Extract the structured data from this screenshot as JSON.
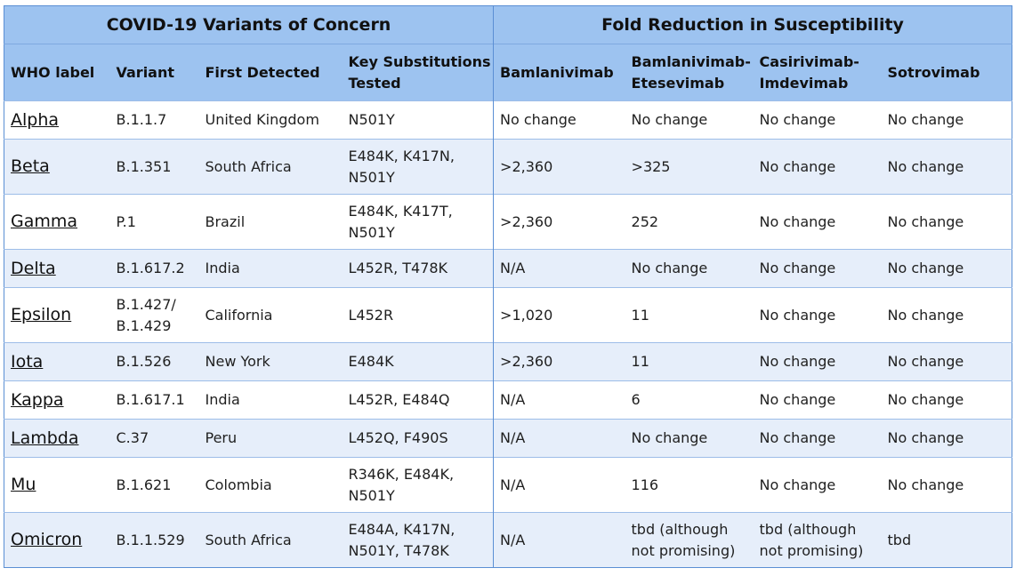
{
  "table": {
    "group_headers": {
      "left": "COVID-19 Variants of Concern",
      "right": "Fold Reduction in Susceptibility"
    },
    "columns": [
      {
        "line1": "WHO label",
        "line2": ""
      },
      {
        "line1": "Variant",
        "line2": ""
      },
      {
        "line1": "First Detected",
        "line2": ""
      },
      {
        "line1": "Key Substitutions",
        "line2": "Tested"
      },
      {
        "line1": "Bamlanivimab",
        "line2": ""
      },
      {
        "line1": "Bamlanivimab-",
        "line2": "Etesevimab"
      },
      {
        "line1": "Casirivimab-",
        "line2": "Imdevimab"
      },
      {
        "line1": "Sotrovimab",
        "line2": ""
      }
    ],
    "rows": [
      {
        "who": "Alpha",
        "variant": [
          "B.1.1.7",
          ""
        ],
        "detected": "United Kingdom",
        "subs": [
          "N501Y",
          ""
        ],
        "bam": "No change",
        "bam_ete": [
          "No change",
          ""
        ],
        "cas_imd": [
          "No change",
          ""
        ],
        "sot": "No change"
      },
      {
        "who": "Beta",
        "variant": [
          "B.1.351",
          ""
        ],
        "detected": "South Africa",
        "subs": [
          "E484K, K417N,",
          "N501Y"
        ],
        "bam": ">2,360",
        "bam_ete": [
          ">325",
          ""
        ],
        "cas_imd": [
          "No change",
          ""
        ],
        "sot": "No change"
      },
      {
        "who": "Gamma",
        "variant": [
          "P.1",
          ""
        ],
        "detected": "Brazil",
        "subs": [
          "E484K, K417T,",
          "N501Y"
        ],
        "bam": ">2,360",
        "bam_ete": [
          "252",
          ""
        ],
        "cas_imd": [
          "No change",
          ""
        ],
        "sot": "No change"
      },
      {
        "who": "Delta",
        "variant": [
          "B.1.617.2",
          ""
        ],
        "detected": "India",
        "subs": [
          "L452R, T478K",
          ""
        ],
        "bam": "N/A",
        "bam_ete": [
          "No change",
          ""
        ],
        "cas_imd": [
          "No change",
          ""
        ],
        "sot": "No change"
      },
      {
        "who": "Epsilon",
        "variant": [
          "B.1.427/",
          "B.1.429"
        ],
        "detected": "California",
        "subs": [
          "L452R",
          ""
        ],
        "bam": ">1,020",
        "bam_ete": [
          "11",
          ""
        ],
        "cas_imd": [
          "No change",
          ""
        ],
        "sot": "No change"
      },
      {
        "who": "Iota",
        "variant": [
          "B.1.526",
          ""
        ],
        "detected": "New York",
        "subs": [
          "E484K",
          ""
        ],
        "bam": ">2,360",
        "bam_ete": [
          "11",
          ""
        ],
        "cas_imd": [
          "No change",
          ""
        ],
        "sot": "No change"
      },
      {
        "who": "Kappa",
        "variant": [
          "B.1.617.1",
          ""
        ],
        "detected": "India",
        "subs": [
          "L452R, E484Q",
          ""
        ],
        "bam": "N/A",
        "bam_ete": [
          "6",
          ""
        ],
        "cas_imd": [
          "No change",
          ""
        ],
        "sot": "No change"
      },
      {
        "who": "Lambda",
        "variant": [
          "C.37",
          ""
        ],
        "detected": "Peru",
        "subs": [
          "L452Q, F490S",
          ""
        ],
        "bam": "N/A",
        "bam_ete": [
          "No change",
          ""
        ],
        "cas_imd": [
          "No change",
          ""
        ],
        "sot": "No change"
      },
      {
        "who": "Mu",
        "variant": [
          "B.1.621",
          ""
        ],
        "detected": "Colombia",
        "subs": [
          "R346K, E484K,",
          "N501Y"
        ],
        "bam": "N/A",
        "bam_ete": [
          "116",
          ""
        ],
        "cas_imd": [
          "No change",
          ""
        ],
        "sot": "No change"
      },
      {
        "who": "Omicron",
        "variant": [
          "B.1.1.529",
          ""
        ],
        "detected": "South Africa",
        "subs": [
          "E484A, K417N,",
          "N501Y, T478K"
        ],
        "bam": "N/A",
        "bam_ete": [
          "tbd (although",
          "not promising)"
        ],
        "cas_imd": [
          "tbd (although",
          "not promising)"
        ],
        "sot": "tbd"
      }
    ]
  }
}
